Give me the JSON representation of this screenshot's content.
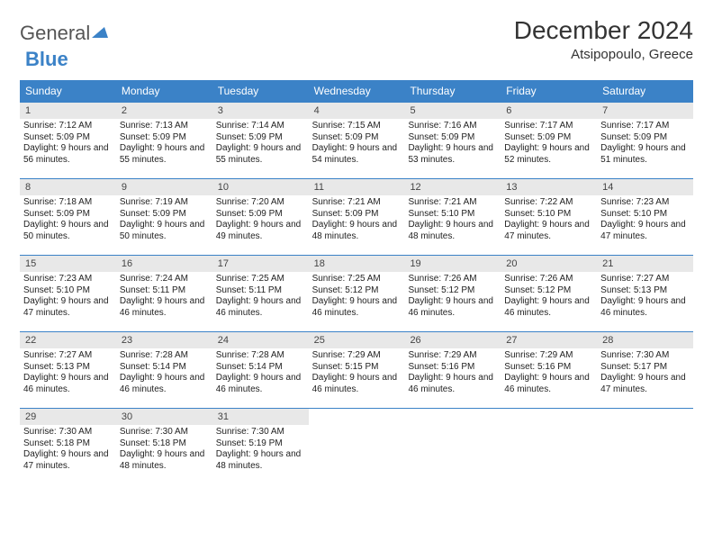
{
  "logo": {
    "general": "General",
    "blue": "Blue"
  },
  "title": "December 2024",
  "location": "Atsipopoulo, Greece",
  "header_bg": "#3b82c7",
  "header_fg": "#ffffff",
  "daynum_bg": "#e8e8e8",
  "week_border": "#3b82c7",
  "day_headers": [
    "Sunday",
    "Monday",
    "Tuesday",
    "Wednesday",
    "Thursday",
    "Friday",
    "Saturday"
  ],
  "weeks": [
    [
      {
        "n": "1",
        "sr": "Sunrise: 7:12 AM",
        "ss": "Sunset: 5:09 PM",
        "dl": "Daylight: 9 hours and 56 minutes."
      },
      {
        "n": "2",
        "sr": "Sunrise: 7:13 AM",
        "ss": "Sunset: 5:09 PM",
        "dl": "Daylight: 9 hours and 55 minutes."
      },
      {
        "n": "3",
        "sr": "Sunrise: 7:14 AM",
        "ss": "Sunset: 5:09 PM",
        "dl": "Daylight: 9 hours and 55 minutes."
      },
      {
        "n": "4",
        "sr": "Sunrise: 7:15 AM",
        "ss": "Sunset: 5:09 PM",
        "dl": "Daylight: 9 hours and 54 minutes."
      },
      {
        "n": "5",
        "sr": "Sunrise: 7:16 AM",
        "ss": "Sunset: 5:09 PM",
        "dl": "Daylight: 9 hours and 53 minutes."
      },
      {
        "n": "6",
        "sr": "Sunrise: 7:17 AM",
        "ss": "Sunset: 5:09 PM",
        "dl": "Daylight: 9 hours and 52 minutes."
      },
      {
        "n": "7",
        "sr": "Sunrise: 7:17 AM",
        "ss": "Sunset: 5:09 PM",
        "dl": "Daylight: 9 hours and 51 minutes."
      }
    ],
    [
      {
        "n": "8",
        "sr": "Sunrise: 7:18 AM",
        "ss": "Sunset: 5:09 PM",
        "dl": "Daylight: 9 hours and 50 minutes."
      },
      {
        "n": "9",
        "sr": "Sunrise: 7:19 AM",
        "ss": "Sunset: 5:09 PM",
        "dl": "Daylight: 9 hours and 50 minutes."
      },
      {
        "n": "10",
        "sr": "Sunrise: 7:20 AM",
        "ss": "Sunset: 5:09 PM",
        "dl": "Daylight: 9 hours and 49 minutes."
      },
      {
        "n": "11",
        "sr": "Sunrise: 7:21 AM",
        "ss": "Sunset: 5:09 PM",
        "dl": "Daylight: 9 hours and 48 minutes."
      },
      {
        "n": "12",
        "sr": "Sunrise: 7:21 AM",
        "ss": "Sunset: 5:10 PM",
        "dl": "Daylight: 9 hours and 48 minutes."
      },
      {
        "n": "13",
        "sr": "Sunrise: 7:22 AM",
        "ss": "Sunset: 5:10 PM",
        "dl": "Daylight: 9 hours and 47 minutes."
      },
      {
        "n": "14",
        "sr": "Sunrise: 7:23 AM",
        "ss": "Sunset: 5:10 PM",
        "dl": "Daylight: 9 hours and 47 minutes."
      }
    ],
    [
      {
        "n": "15",
        "sr": "Sunrise: 7:23 AM",
        "ss": "Sunset: 5:10 PM",
        "dl": "Daylight: 9 hours and 47 minutes."
      },
      {
        "n": "16",
        "sr": "Sunrise: 7:24 AM",
        "ss": "Sunset: 5:11 PM",
        "dl": "Daylight: 9 hours and 46 minutes."
      },
      {
        "n": "17",
        "sr": "Sunrise: 7:25 AM",
        "ss": "Sunset: 5:11 PM",
        "dl": "Daylight: 9 hours and 46 minutes."
      },
      {
        "n": "18",
        "sr": "Sunrise: 7:25 AM",
        "ss": "Sunset: 5:12 PM",
        "dl": "Daylight: 9 hours and 46 minutes."
      },
      {
        "n": "19",
        "sr": "Sunrise: 7:26 AM",
        "ss": "Sunset: 5:12 PM",
        "dl": "Daylight: 9 hours and 46 minutes."
      },
      {
        "n": "20",
        "sr": "Sunrise: 7:26 AM",
        "ss": "Sunset: 5:12 PM",
        "dl": "Daylight: 9 hours and 46 minutes."
      },
      {
        "n": "21",
        "sr": "Sunrise: 7:27 AM",
        "ss": "Sunset: 5:13 PM",
        "dl": "Daylight: 9 hours and 46 minutes."
      }
    ],
    [
      {
        "n": "22",
        "sr": "Sunrise: 7:27 AM",
        "ss": "Sunset: 5:13 PM",
        "dl": "Daylight: 9 hours and 46 minutes."
      },
      {
        "n": "23",
        "sr": "Sunrise: 7:28 AM",
        "ss": "Sunset: 5:14 PM",
        "dl": "Daylight: 9 hours and 46 minutes."
      },
      {
        "n": "24",
        "sr": "Sunrise: 7:28 AM",
        "ss": "Sunset: 5:14 PM",
        "dl": "Daylight: 9 hours and 46 minutes."
      },
      {
        "n": "25",
        "sr": "Sunrise: 7:29 AM",
        "ss": "Sunset: 5:15 PM",
        "dl": "Daylight: 9 hours and 46 minutes."
      },
      {
        "n": "26",
        "sr": "Sunrise: 7:29 AM",
        "ss": "Sunset: 5:16 PM",
        "dl": "Daylight: 9 hours and 46 minutes."
      },
      {
        "n": "27",
        "sr": "Sunrise: 7:29 AM",
        "ss": "Sunset: 5:16 PM",
        "dl": "Daylight: 9 hours and 46 minutes."
      },
      {
        "n": "28",
        "sr": "Sunrise: 7:30 AM",
        "ss": "Sunset: 5:17 PM",
        "dl": "Daylight: 9 hours and 47 minutes."
      }
    ],
    [
      {
        "n": "29",
        "sr": "Sunrise: 7:30 AM",
        "ss": "Sunset: 5:18 PM",
        "dl": "Daylight: 9 hours and 47 minutes."
      },
      {
        "n": "30",
        "sr": "Sunrise: 7:30 AM",
        "ss": "Sunset: 5:18 PM",
        "dl": "Daylight: 9 hours and 48 minutes."
      },
      {
        "n": "31",
        "sr": "Sunrise: 7:30 AM",
        "ss": "Sunset: 5:19 PM",
        "dl": "Daylight: 9 hours and 48 minutes."
      },
      {
        "empty": true
      },
      {
        "empty": true
      },
      {
        "empty": true
      },
      {
        "empty": true
      }
    ]
  ]
}
